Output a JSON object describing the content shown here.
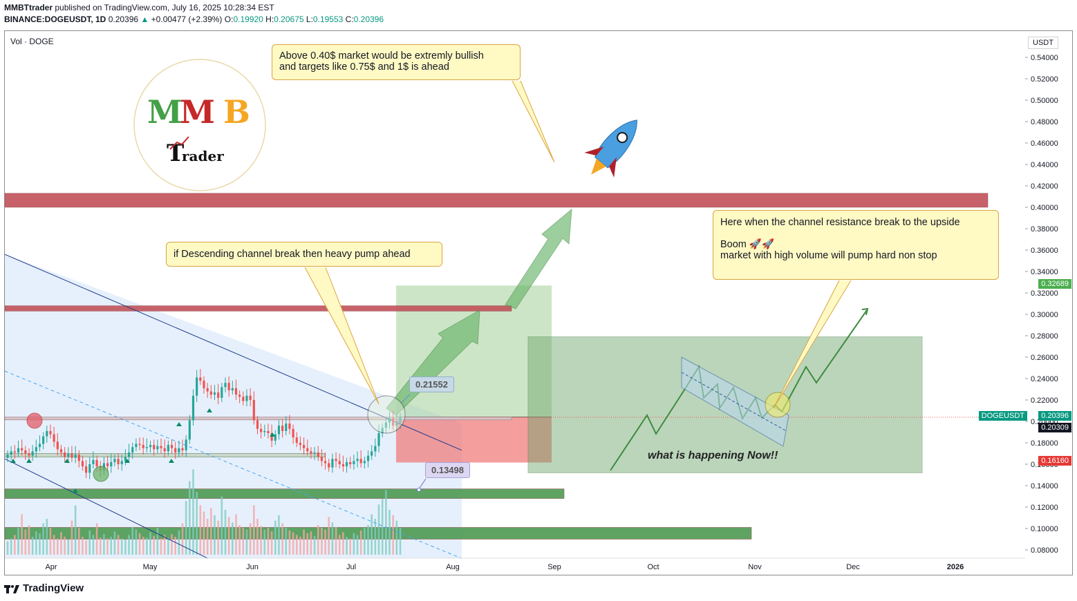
{
  "header": {
    "publisher": "MMBTtrader",
    "published_text": "published on TradingView.com, July 16, 2025 10:28:34 EST",
    "symbol": "BINANCE:DOGEUSDT, 1D",
    "last": "0.20396",
    "change": "+0.00477 (+2.39%)",
    "o_label": "O:",
    "o": "0.19920",
    "h_label": "H:",
    "h": "0.20675",
    "l_label": "L:",
    "l": "0.19553",
    "c_label": "C:",
    "c": "0.20396"
  },
  "volume_label": "Vol · DOGE",
  "currency": "USDT",
  "footer_logo": "TradingView",
  "brand_logo": {
    "letters": "MMB",
    "line2": "Trader"
  },
  "colors": {
    "up": "#26a69a",
    "down": "#ef5350",
    "resistance": "#c2525a",
    "support": "#4e9a52",
    "channel": "#1e3a8a"
  },
  "price_tags": {
    "target": "0.32689",
    "symbol_name": "DOGEUSDT",
    "last": "0.20396",
    "mid": "0.20309",
    "stop": "0.16160"
  },
  "notes": {
    "top": [
      "Above 0.40$ market would be extremly bullish",
      "and targets like 0.75$ and 1$ is ahead"
    ],
    "middle": "if Descending channel break then heavy pump ahead",
    "right": [
      "Here when the channel resistance break to the upside",
      "",
      "Boom 🚀🚀",
      "market with high volume will pump hard non stop"
    ],
    "now": "what is happening Now!!"
  },
  "callouts": {
    "upper": "0.21552",
    "lower": "0.13498"
  },
  "chart_data": {
    "type": "candlestick",
    "title": "",
    "y_unit": "USDT",
    "ylim": [
      0.07,
      0.55
    ],
    "y_ticks": [
      "0.54000",
      "0.52000",
      "0.50000",
      "0.48000",
      "0.46000",
      "0.44000",
      "0.42000",
      "0.40000",
      "0.38000",
      "0.36000",
      "0.34000",
      "0.32000",
      "0.30000",
      "0.28000",
      "0.26000",
      "0.24000",
      "0.22000",
      "0.20000",
      "0.18000",
      "0.16000",
      "0.14000",
      "0.12000",
      "0.10000",
      "0.08000"
    ],
    "x_ticks": [
      "Apr",
      "May",
      "Jun",
      "Jul",
      "Aug",
      "Sep",
      "Oct",
      "Nov",
      "Dec",
      "2026"
    ],
    "zones": [
      {
        "name": "resistance",
        "from": 0.4,
        "to": 0.413
      },
      {
        "name": "resistance",
        "from": 0.303,
        "to": 0.308
      },
      {
        "name": "support",
        "from": 0.128,
        "to": 0.137
      },
      {
        "name": "support",
        "from": 0.09,
        "to": 0.101
      }
    ],
    "position": {
      "entry": 0.204,
      "target": 0.3269,
      "stop": 0.1616
    },
    "closes": [
      0.169,
      0.172,
      0.171,
      0.175,
      0.173,
      0.17,
      0.168,
      0.172,
      0.176,
      0.179,
      0.186,
      0.191,
      0.188,
      0.181,
      0.174,
      0.171,
      0.167,
      0.17,
      0.166,
      0.169,
      0.163,
      0.158,
      0.152,
      0.16,
      0.164,
      0.158,
      0.154,
      0.161,
      0.158,
      0.162,
      0.165,
      0.16,
      0.163,
      0.167,
      0.171,
      0.176,
      0.179,
      0.178,
      0.175,
      0.176,
      0.178,
      0.174,
      0.177,
      0.175,
      0.172,
      0.178,
      0.175,
      0.171,
      0.175,
      0.173,
      0.183,
      0.201,
      0.224,
      0.241,
      0.238,
      0.231,
      0.228,
      0.225,
      0.227,
      0.222,
      0.232,
      0.236,
      0.229,
      0.231,
      0.225,
      0.223,
      0.219,
      0.224,
      0.22,
      0.201,
      0.193,
      0.19,
      0.191,
      0.189,
      0.182,
      0.188,
      0.196,
      0.191,
      0.198,
      0.193,
      0.185,
      0.18,
      0.178,
      0.175,
      0.172,
      0.17,
      0.171,
      0.167,
      0.163,
      0.161,
      0.157,
      0.165,
      0.163,
      0.16,
      0.158,
      0.162,
      0.16,
      0.163,
      0.165,
      0.161,
      0.163,
      0.168,
      0.172,
      0.177,
      0.189,
      0.194,
      0.199,
      0.203,
      0.196,
      0.199,
      0.204
    ],
    "volumes": [
      0.15,
      0.18,
      0.22,
      0.3,
      0.45,
      0.28,
      0.33,
      0.2,
      0.26,
      0.24,
      0.35,
      0.4,
      0.3,
      0.22,
      0.18,
      0.25,
      0.2,
      0.17,
      0.38,
      0.55,
      0.3,
      0.2,
      0.16,
      0.27,
      0.22,
      0.35,
      0.19,
      0.23,
      0.18,
      0.2,
      0.26,
      0.22,
      0.18,
      0.17,
      0.22,
      0.31,
      0.28,
      0.24,
      0.2,
      0.19,
      0.25,
      0.21,
      0.3,
      0.18,
      0.22,
      0.19,
      0.23,
      0.2,
      0.27,
      0.35,
      0.6,
      0.82,
      0.95,
      0.7,
      0.55,
      0.48,
      0.4,
      0.52,
      0.44,
      0.38,
      0.65,
      0.5,
      0.42,
      0.36,
      0.45,
      0.33,
      0.3,
      0.28,
      0.35,
      0.55,
      0.4,
      0.32,
      0.28,
      0.3,
      0.26,
      0.38,
      0.44,
      0.35,
      0.3,
      0.27,
      0.25,
      0.22,
      0.2,
      0.28,
      0.24,
      0.26,
      0.21,
      0.33,
      0.3,
      0.28,
      0.42,
      0.36,
      0.31,
      0.22,
      0.25,
      0.2,
      0.18,
      0.24,
      0.22,
      0.27,
      0.3,
      0.33,
      0.45,
      0.4,
      0.56,
      0.62,
      0.72,
      0.5,
      0.44,
      0.38,
      0.3
    ]
  }
}
